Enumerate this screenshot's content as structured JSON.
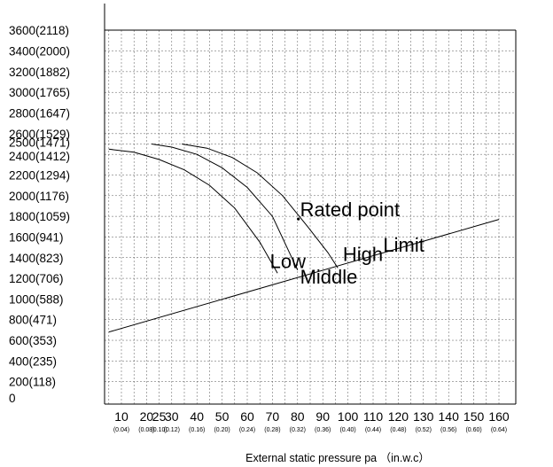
{
  "chart_data": {
    "type": "line",
    "title": "",
    "xlabel": "External static pressure pa （in.w.c）",
    "ylabel": "",
    "xlim": [
      5,
      160
    ],
    "ylim": [
      0,
      3600
    ],
    "grid": true,
    "y_ticks": [
      {
        "value": 0,
        "label": "0"
      },
      {
        "value": 200,
        "label": "200(118)"
      },
      {
        "value": 400,
        "label": "400(235)"
      },
      {
        "value": 600,
        "label": "600(353)"
      },
      {
        "value": 800,
        "label": "800(471)"
      },
      {
        "value": 1000,
        "label": "1000(588)"
      },
      {
        "value": 1200,
        "label": "1200(706)"
      },
      {
        "value": 1400,
        "label": "1400(823)"
      },
      {
        "value": 1600,
        "label": "1600(941)"
      },
      {
        "value": 1800,
        "label": "1800(1059)"
      },
      {
        "value": 2000,
        "label": "2000(1176)"
      },
      {
        "value": 2200,
        "label": "2200(1294)"
      },
      {
        "value": 2400,
        "label": "2400(1412)"
      },
      {
        "value": 2500,
        "label": "2500(1471)"
      },
      {
        "value": 2600,
        "label": "2600(1529)"
      },
      {
        "value": 2800,
        "label": "2800(1647)"
      },
      {
        "value": 3000,
        "label": "3000(1765)"
      },
      {
        "value": 3200,
        "label": "3200(1882)"
      },
      {
        "value": 3400,
        "label": "3400(2000)"
      },
      {
        "value": 3600,
        "label": "3600(2118)"
      }
    ],
    "x_ticks": [
      {
        "value": 10,
        "label": "10",
        "sub": "(0.04)"
      },
      {
        "value": 20,
        "label": "20",
        "sub": "(0.08)"
      },
      {
        "value": 25,
        "label": "25",
        "sub": "(0.10)"
      },
      {
        "value": 30,
        "label": "30",
        "sub": "(0.12)"
      },
      {
        "value": 40,
        "label": "40",
        "sub": "(0.16)"
      },
      {
        "value": 50,
        "label": "50",
        "sub": "(0.20)"
      },
      {
        "value": 60,
        "label": "60",
        "sub": "(0.24)"
      },
      {
        "value": 70,
        "label": "70",
        "sub": "(0.28)"
      },
      {
        "value": 80,
        "label": "80",
        "sub": "(0.32)"
      },
      {
        "value": 90,
        "label": "90",
        "sub": "(0.36)"
      },
      {
        "value": 100,
        "label": "100",
        "sub": "(0.40)"
      },
      {
        "value": 110,
        "label": "110",
        "sub": "(0.44)"
      },
      {
        "value": 120,
        "label": "120",
        "sub": "(0.48)"
      },
      {
        "value": 130,
        "label": "130",
        "sub": "(0.52)"
      },
      {
        "value": 140,
        "label": "140",
        "sub": "(0.56)"
      },
      {
        "value": 150,
        "label": "150",
        "sub": "(0.60)"
      },
      {
        "value": 160,
        "label": "160",
        "sub": "(0.64)"
      }
    ],
    "series": [
      {
        "name": "Low",
        "x": [
          5,
          15,
          25,
          35,
          45,
          55,
          65,
          72
        ],
        "y": [
          2450,
          2420,
          2350,
          2250,
          2100,
          1880,
          1550,
          1250
        ]
      },
      {
        "name": "Middle",
        "x": [
          22,
          30,
          40,
          50,
          60,
          70,
          80
        ],
        "y": [
          2500,
          2470,
          2400,
          2270,
          2080,
          1800,
          1280
        ]
      },
      {
        "name": "High",
        "x": [
          34,
          44,
          54,
          64,
          74,
          84,
          92,
          96
        ],
        "y": [
          2500,
          2460,
          2370,
          2220,
          2000,
          1700,
          1450,
          1300
        ]
      },
      {
        "name": "Limit",
        "x": [
          5,
          160
        ],
        "y": [
          680,
          1770
        ]
      }
    ],
    "annotations": [
      {
        "text": "Rated point",
        "x": 81,
        "y": 1800
      },
      {
        "text": "Low",
        "x": 69,
        "y": 1300
      },
      {
        "text": "Middle",
        "x": 81,
        "y": 1150
      },
      {
        "text": "High",
        "x": 98,
        "y": 1370
      },
      {
        "text": "Limit",
        "x": 114,
        "y": 1460
      }
    ]
  }
}
